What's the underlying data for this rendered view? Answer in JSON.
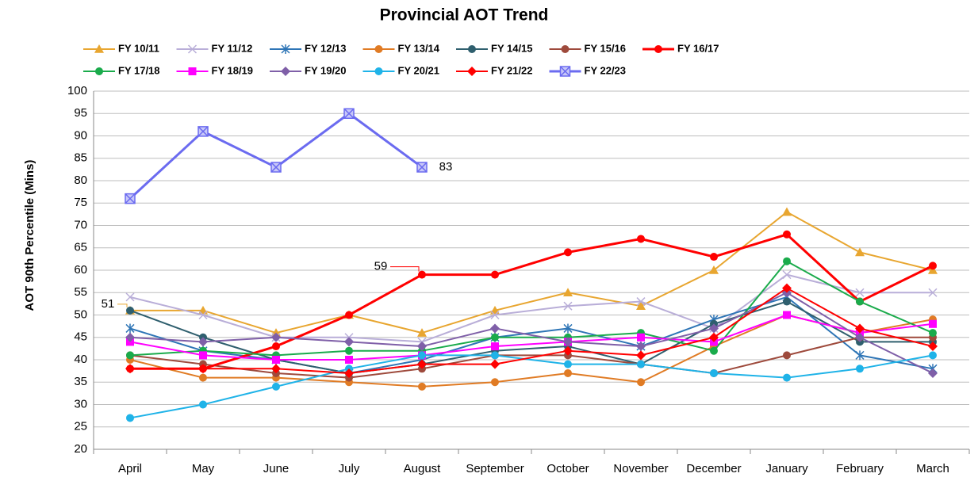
{
  "chart_data": {
    "type": "line",
    "title": "Provincial AOT Trend",
    "y_label": "AOT 90th Percentile (Mins)",
    "categories": [
      "April",
      "May",
      "June",
      "July",
      "August",
      "September",
      "October",
      "November",
      "December",
      "January",
      "February",
      "March"
    ],
    "ylim": [
      20,
      100
    ],
    "yticks": [
      20,
      25,
      30,
      35,
      40,
      45,
      50,
      55,
      60,
      65,
      70,
      75,
      80,
      85,
      90,
      95,
      100
    ],
    "grid": true,
    "legend": "top",
    "series": [
      {
        "name": "FY 10/11",
        "color": "#e8a630",
        "marker": "triangle",
        "label_index": 0,
        "values": [
          51,
          51,
          46,
          50,
          46,
          51,
          55,
          52,
          60,
          73,
          64,
          60
        ]
      },
      {
        "name": "FY 11/12",
        "color": "#b9aed8",
        "marker": "x",
        "values": [
          54,
          50,
          45,
          45,
          44,
          50,
          52,
          53,
          47,
          59,
          55,
          55
        ]
      },
      {
        "name": "FY 12/13",
        "color": "#2e75b6",
        "marker": "star",
        "values": [
          47,
          42,
          40,
          37,
          40,
          45,
          47,
          43,
          49,
          54,
          41,
          38
        ]
      },
      {
        "name": "FY 13/14",
        "color": "#e07b24",
        "marker": "circle",
        "values": [
          40,
          36,
          36,
          35,
          34,
          35,
          37,
          35,
          43,
          50,
          46,
          49
        ]
      },
      {
        "name": "FY 14/15",
        "color": "#2f5f6e",
        "marker": "circle",
        "values": [
          51,
          45,
          40,
          37,
          39,
          42,
          43,
          39,
          48,
          53,
          44,
          44
        ]
      },
      {
        "name": "FY 15/16",
        "color": "#9e4a3c",
        "marker": "circle",
        "values": [
          41,
          39,
          37,
          36,
          38,
          41,
          41,
          39,
          37,
          41,
          45,
          45
        ]
      },
      {
        "name": "FY 16/17",
        "color": "#ff0000",
        "marker": "circle",
        "width": 3,
        "label_index": 4,
        "values": [
          38,
          38,
          43,
          50,
          59,
          59,
          64,
          67,
          63,
          68,
          53,
          61
        ]
      },
      {
        "name": "FY 17/18",
        "color": "#1aab4b",
        "marker": "circle",
        "values": [
          41,
          42,
          41,
          42,
          42,
          45,
          45,
          46,
          42,
          62,
          53,
          46
        ]
      },
      {
        "name": "FY 18/19",
        "color": "#ff00ff",
        "marker": "square",
        "values": [
          44,
          41,
          40,
          40,
          41,
          43,
          44,
          45,
          44,
          50,
          46,
          48
        ]
      },
      {
        "name": "FY 19/20",
        "color": "#7f5fa8",
        "marker": "diamond",
        "values": [
          45,
          44,
          45,
          44,
          43,
          47,
          44,
          43,
          47,
          55,
          45,
          37
        ]
      },
      {
        "name": "FY 20/21",
        "color": "#1fb3e8",
        "marker": "circle",
        "values": [
          27,
          30,
          34,
          38,
          41,
          41,
          39,
          39,
          37,
          36,
          38,
          41
        ]
      },
      {
        "name": "FY 21/22",
        "color": "#ff0000",
        "marker": "diamond",
        "values": [
          38,
          38,
          38,
          37,
          39,
          39,
          42,
          41,
          45,
          56,
          47,
          43
        ]
      },
      {
        "name": "FY 22/23",
        "color": "#6b6bf0",
        "marker": "boxx",
        "width": 3,
        "label_index": 4,
        "values": [
          76,
          91,
          83,
          95,
          83,
          null,
          null,
          null,
          null,
          null,
          null,
          null
        ]
      }
    ]
  }
}
